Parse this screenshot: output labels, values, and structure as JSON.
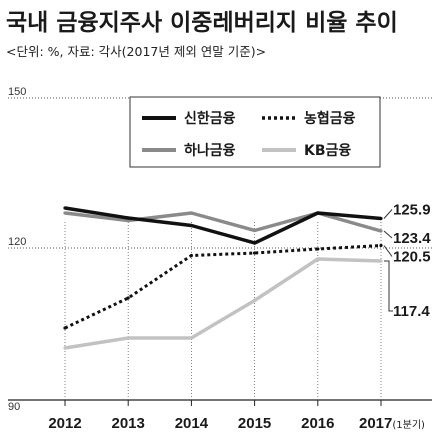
{
  "chart_data": {
    "type": "line",
    "title": "국내 금융지주사 이중레버리지 비율 추이",
    "subtitle": "<단위: %, 자료: 각사(2017년 제외 연말 기준)>",
    "categories": [
      "2012",
      "2013",
      "2014",
      "2015",
      "2016",
      "2017"
    ],
    "category_suffix": "(1분기)",
    "ylim": [
      90,
      150
    ],
    "yticks": [
      "150",
      "120",
      "90"
    ],
    "series": [
      {
        "name": "신한금융",
        "values": [
          128.0,
          126.0,
          124.5,
          121.0,
          127.0,
          125.9
        ],
        "color": "#111111",
        "dash": "solid",
        "end_label": "125.9"
      },
      {
        "name": "하나금융",
        "values": [
          127.0,
          125.5,
          127.0,
          123.5,
          127.0,
          123.4
        ],
        "color": "#8a8a8a",
        "dash": "solid",
        "end_label": "123.4"
      },
      {
        "name": "농협금융",
        "values": [
          104.0,
          110.0,
          118.5,
          119.0,
          119.8,
          120.5
        ],
        "color": "#111111",
        "dash": "dotted",
        "end_label": "120.5"
      },
      {
        "name": "KB금융",
        "values": [
          100.0,
          102.0,
          102.0,
          109.5,
          117.8,
          117.4
        ],
        "color": "#c2c2c2",
        "dash": "solid",
        "end_label": "117.4"
      }
    ],
    "legend_position": "top-right",
    "grid": "horizontal dotted at 150 and 120"
  }
}
